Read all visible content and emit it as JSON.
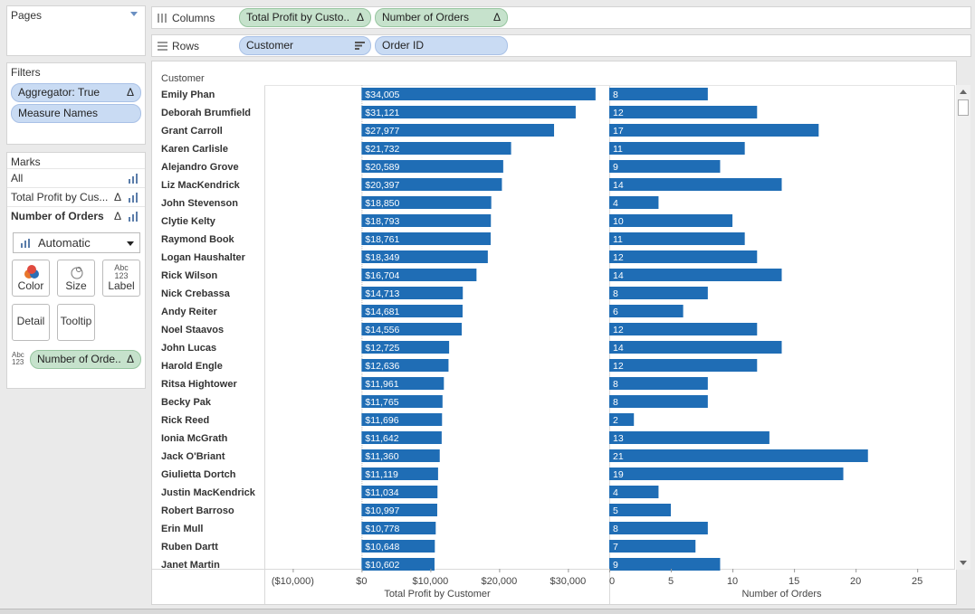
{
  "pages": {
    "title": "Pages"
  },
  "filters": {
    "title": "Filters",
    "items": [
      {
        "label": "Aggregator: True",
        "delta": "Δ"
      },
      {
        "label": "Measure Names"
      }
    ]
  },
  "marks": {
    "title": "Marks",
    "rows": [
      {
        "label": "All"
      },
      {
        "label": "Total Profit by Cus...",
        "delta": "Δ"
      },
      {
        "label": "Number of Orders",
        "delta": "Δ"
      }
    ],
    "mark_type": "Automatic",
    "buttons": [
      "Color",
      "Size",
      "Label",
      "Detail",
      "Tooltip"
    ],
    "label_icon_text": "Abc\n123",
    "field_pill": {
      "icon": "Abc\n123",
      "label": "Number of Orde..",
      "delta": "Δ"
    }
  },
  "shelves": {
    "columns": {
      "label": "Columns",
      "pills": [
        {
          "label": "Total Profit by Custo..",
          "delta": "Δ"
        },
        {
          "label": "Number of Orders",
          "delta": "Δ"
        }
      ]
    },
    "rows": {
      "label": "Rows",
      "pills": [
        {
          "label": "Customer"
        },
        {
          "label": "Order ID"
        }
      ]
    }
  },
  "colors": {
    "bar": "#1f6db5",
    "pill_blue": "#c9dbf3",
    "pill_green": "#c6e2cc"
  },
  "chart_data": {
    "type": "bar",
    "row_header": "Customer",
    "categories": [
      "Emily Phan",
      "Deborah Brumfield",
      "Grant Carroll",
      "Karen Carlisle",
      "Alejandro Grove",
      "Liz MacKendrick",
      "John Stevenson",
      "Clytie Kelty",
      "Raymond Book",
      "Logan Haushalter",
      "Rick Wilson",
      "Nick Crebassa",
      "Andy Reiter",
      "Noel Staavos",
      "John Lucas",
      "Harold Engle",
      "Ritsa Hightower",
      "Becky Pak",
      "Rick Reed",
      "Ionia McGrath",
      "Jack O'Briant",
      "Giulietta Dortch",
      "Justin MacKendrick",
      "Robert Barroso",
      "Erin Mull",
      "Ruben Dartt",
      "Janet Martin"
    ],
    "series": [
      {
        "name": "Total Profit by Customer",
        "values": [
          34005,
          31121,
          27977,
          21732,
          20589,
          20397,
          18850,
          18793,
          18761,
          18349,
          16704,
          14713,
          14681,
          14556,
          12725,
          12636,
          11961,
          11765,
          11696,
          11642,
          11360,
          11119,
          11034,
          10997,
          10778,
          10648,
          10602
        ],
        "labels": [
          "$34,005",
          "$31,121",
          "$27,977",
          "$21,732",
          "$20,589",
          "$20,397",
          "$18,850",
          "$18,793",
          "$18,761",
          "$18,349",
          "$16,704",
          "$14,713",
          "$14,681",
          "$14,556",
          "$12,725",
          "$12,636",
          "$11,961",
          "$11,765",
          "$11,696",
          "$11,642",
          "$11,360",
          "$11,119",
          "$11,034",
          "$10,997",
          "$10,778",
          "$10,648",
          "$10,602"
        ],
        "xlabel": "Total Profit by Customer",
        "xlim": [
          -14000,
          36000
        ],
        "ticks": [
          -10000,
          0,
          10000,
          20000,
          30000
        ],
        "tick_labels": [
          "($10,000)",
          "$0",
          "$10,000",
          "$20,000",
          "$30,000"
        ]
      },
      {
        "name": "Number of Orders",
        "values": [
          8,
          12,
          17,
          11,
          9,
          14,
          4,
          10,
          11,
          12,
          14,
          8,
          6,
          12,
          14,
          12,
          8,
          8,
          2,
          13,
          21,
          19,
          4,
          5,
          8,
          7,
          9
        ],
        "labels": [
          "8",
          "12",
          "17",
          "11",
          "9",
          "14",
          "4",
          "10",
          "11",
          "12",
          "14",
          "8",
          "6",
          "12",
          "14",
          "12",
          "8",
          "8",
          "2",
          "13",
          "21",
          "19",
          "4",
          "5",
          "8",
          "7",
          "9"
        ],
        "xlabel": "Number of Orders",
        "xlim": [
          0,
          28
        ],
        "ticks": [
          0,
          5,
          10,
          15,
          20,
          25
        ],
        "tick_labels": [
          "0",
          "5",
          "10",
          "15",
          "20",
          "25"
        ]
      }
    ],
    "grid": false
  }
}
